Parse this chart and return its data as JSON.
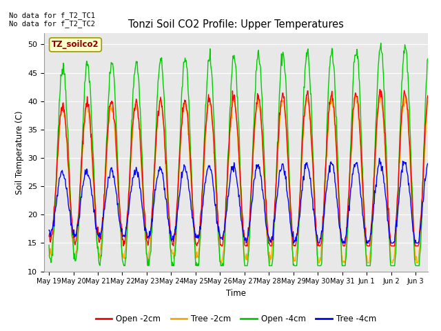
{
  "title": "Tonzi Soil CO2 Profile: Upper Temperatures",
  "ylabel": "Soil Temperature (C)",
  "xlabel": "Time",
  "ylim": [
    10,
    52
  ],
  "colors": {
    "open_2cm": "#ff0000",
    "tree_2cm": "#ffa500",
    "open_4cm": "#00cc00",
    "tree_4cm": "#0000ff"
  },
  "xtick_labels": [
    "May 19",
    "May 20",
    "May 21",
    "May 22",
    "May 23",
    "May 24",
    "May 25",
    "May 26",
    "May 27",
    "May 28",
    "May 29",
    "May 30",
    "May 31",
    "Jun 1",
    "Jun 2",
    "Jun 3"
  ],
  "ytick_values": [
    10,
    15,
    20,
    25,
    30,
    35,
    40,
    45,
    50
  ],
  "bg_color": "#e8e8e8",
  "annotation_text": "No data for f_T2_TC1\nNo data for f_T2_TC2",
  "legend_label_text": "TZ_soilco2",
  "legend_entries": [
    "Open -2cm",
    "Tree -2cm",
    "Open -4cm",
    "Tree -4cm"
  ],
  "legend_colors": [
    "#ff0000",
    "#ffa500",
    "#00cc00",
    "#0000ff"
  ]
}
